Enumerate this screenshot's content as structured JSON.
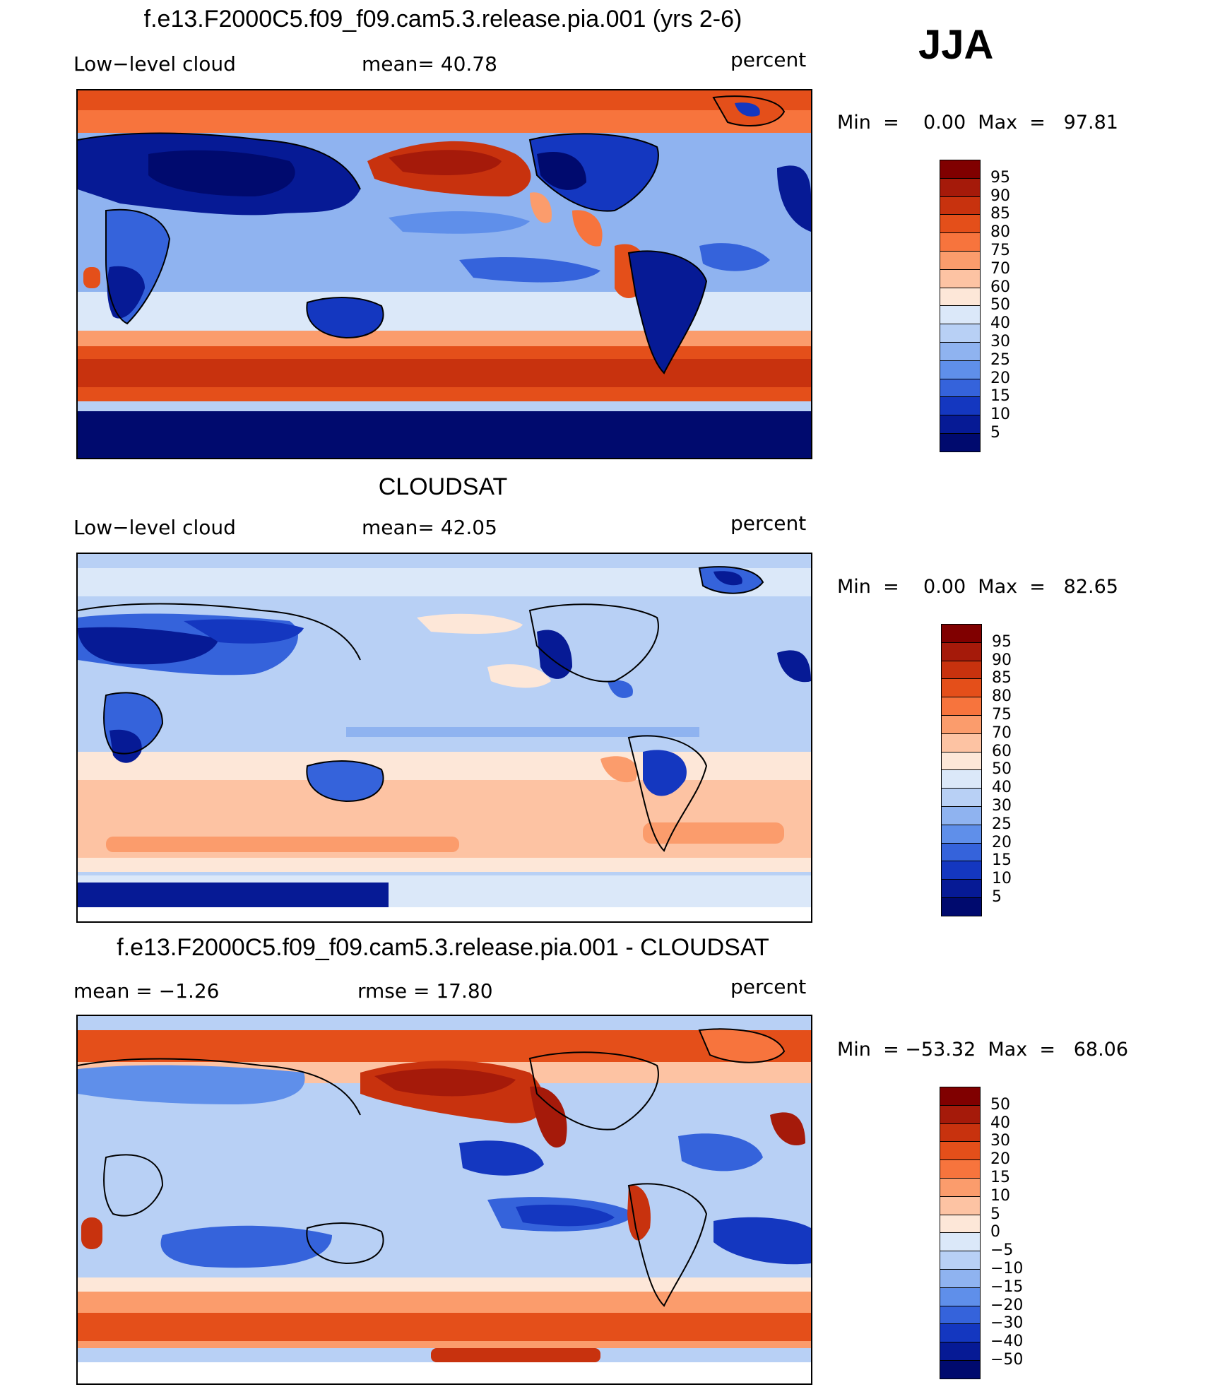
{
  "header": {
    "case_title": "f.e13.F2000C5.f09_f09.cam5.3.release.pia.001 (yrs 2-6)",
    "season": "JJA"
  },
  "panels": [
    {
      "id": "model",
      "title": "",
      "left_label": "Low−level cloud",
      "stat_label": "mean=   40.78",
      "units": "percent",
      "minmax": "Min  =    0.00  Max  =   97.81",
      "colorbar": {
        "labels": [
          "95",
          "90",
          "85",
          "80",
          "75",
          "70",
          "60",
          "50",
          "40",
          "30",
          "25",
          "20",
          "15",
          "10",
          "5"
        ],
        "colors": [
          "#800000",
          "#a51a0a",
          "#c8320e",
          "#e44f1a",
          "#f7743d",
          "#fb9c6c",
          "#fdc3a3",
          "#fde7d8",
          "#dbe8f9",
          "#b8d0f5",
          "#8fb3f0",
          "#5f8fea",
          "#3563db",
          "#1437c0",
          "#061a95",
          "#000a6e"
        ]
      }
    },
    {
      "id": "obs",
      "title": "CLOUDSAT",
      "left_label": "Low−level cloud",
      "stat_label": "mean=   42.05",
      "units": "percent",
      "minmax": "Min  =    0.00  Max  =   82.65",
      "colorbar": {
        "labels": [
          "95",
          "90",
          "85",
          "80",
          "75",
          "70",
          "60",
          "50",
          "40",
          "30",
          "25",
          "20",
          "15",
          "10",
          "5"
        ],
        "colors": [
          "#800000",
          "#a51a0a",
          "#c8320e",
          "#e44f1a",
          "#f7743d",
          "#fb9c6c",
          "#fdc3a3",
          "#fde7d8",
          "#dbe8f9",
          "#b8d0f5",
          "#8fb3f0",
          "#5f8fea",
          "#3563db",
          "#1437c0",
          "#061a95",
          "#000a6e"
        ]
      }
    },
    {
      "id": "diff",
      "title": "f.e13.F2000C5.f09_f09.cam5.3.release.pia.001 - CLOUDSAT",
      "left_label": "mean  =   −1.26",
      "stat_label": "rmse  =   17.80",
      "units": "percent",
      "minmax": "Min  = −53.32  Max  =   68.06",
      "colorbar": {
        "labels": [
          "50",
          "40",
          "30",
          "20",
          "15",
          "10",
          "5",
          "0",
          "−5",
          "−10",
          "−15",
          "−20",
          "−30",
          "−40",
          "−50"
        ],
        "colors": [
          "#800000",
          "#a51a0a",
          "#c8320e",
          "#e44f1a",
          "#f7743d",
          "#fb9c6c",
          "#fdc3a3",
          "#fde7d8",
          "#dbe8f9",
          "#b8d0f5",
          "#8fb3f0",
          "#5f8fea",
          "#3563db",
          "#1437c0",
          "#061a95",
          "#000a6e"
        ]
      }
    }
  ]
}
